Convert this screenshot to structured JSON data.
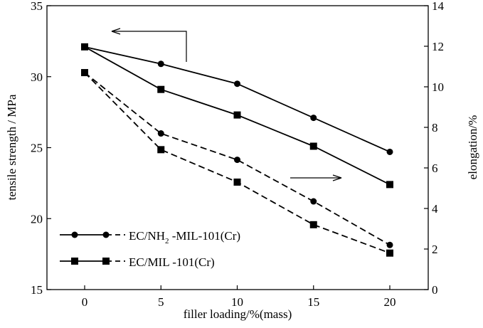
{
  "chart_data": {
    "type": "line",
    "xlabel": "filler loading/%(mass)",
    "ylabel_left": "tensile strength / MPa",
    "ylabel_right": "elongation/%",
    "x": [
      0,
      5,
      10,
      15,
      20
    ],
    "xlim": [
      -2.2,
      22.2
    ],
    "xticks": [
      "0",
      "5",
      "10",
      "15",
      "20"
    ],
    "ylim_left": [
      15,
      35
    ],
    "yticks_left": [
      "15",
      "20",
      "25",
      "30",
      "35"
    ],
    "ylim_right": [
      0,
      14
    ],
    "yticks_right": [
      "0",
      "2",
      "4",
      "6",
      "8",
      "10",
      "12",
      "14"
    ],
    "grid": false,
    "legend_position": "bottom-left",
    "series": [
      {
        "name": "EC/NH2-MIL-101(Cr) tensile strength",
        "axis": "left",
        "marker": "circle",
        "dash": "solid",
        "values": [
          32.1,
          30.9,
          29.5,
          27.1,
          24.7
        ]
      },
      {
        "name": "EC/MIL-101(Cr) tensile strength",
        "axis": "left",
        "marker": "square",
        "dash": "solid",
        "values": [
          32.1,
          29.1,
          27.3,
          25.1,
          22.4
        ]
      },
      {
        "name": "EC/NH2-MIL-101(Cr) elongation",
        "axis": "right",
        "marker": "circle",
        "dash": "dashed",
        "values": [
          10.7,
          7.7,
          6.4,
          4.35,
          2.2
        ]
      },
      {
        "name": "EC/MIL-101(Cr) elongation",
        "axis": "right",
        "marker": "square",
        "dash": "dashed",
        "values": [
          10.7,
          6.9,
          5.3,
          3.2,
          1.8
        ]
      }
    ],
    "legend": [
      {
        "prefix": "EC/NH",
        "sub": "2",
        "suffix": " -MIL-101(Cr)",
        "marker": "circle"
      },
      {
        "prefix": "EC/MIL -101(Cr)",
        "sub": "",
        "suffix": "",
        "marker": "square"
      }
    ]
  }
}
